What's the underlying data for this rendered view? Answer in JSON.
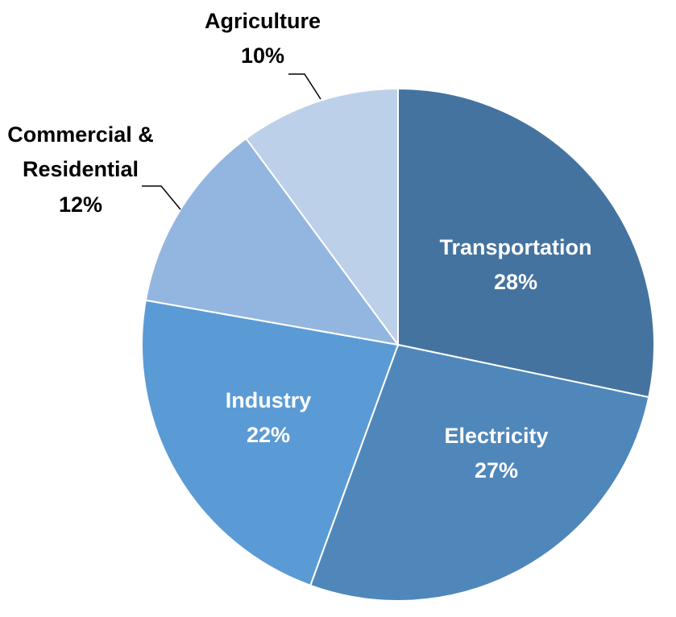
{
  "chart_data": {
    "type": "pie",
    "title": "",
    "start_angle_deg": 0,
    "direction": "clockwise",
    "slices": [
      {
        "label": "Transportation",
        "value": 28,
        "value_label": "28%",
        "color": "#44739f",
        "label_position": "inside",
        "name_lines": [
          "Transportation"
        ]
      },
      {
        "label": "Electricity",
        "value": 27,
        "value_label": "27%",
        "color": "#4f87bb",
        "label_position": "inside",
        "name_lines": [
          "Electricity"
        ]
      },
      {
        "label": "Industry",
        "value": 22,
        "value_label": "22%",
        "color": "#5b9bd5",
        "label_position": "inside",
        "name_lines": [
          "Industry"
        ]
      },
      {
        "label": "Commercial & Residential",
        "value": 12,
        "value_label": "12%",
        "color": "#93b6e0",
        "label_position": "outside",
        "name_lines": [
          "Commercial &",
          "Residential"
        ]
      },
      {
        "label": "Agriculture",
        "value": 10,
        "value_label": "10%",
        "color": "#bdd0ea",
        "label_position": "outside",
        "name_lines": [
          "Agriculture"
        ]
      }
    ]
  }
}
